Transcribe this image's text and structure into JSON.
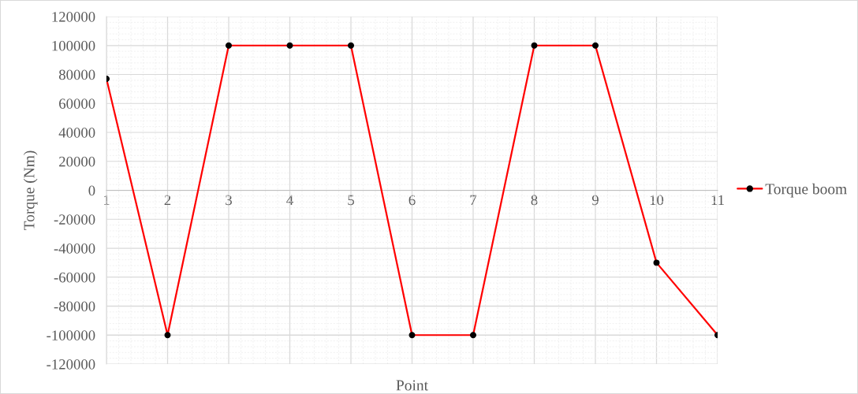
{
  "chart_data": {
    "type": "line",
    "xlabel": "Point",
    "ylabel": "Torque (Nm)",
    "x": [
      1,
      2,
      3,
      4,
      5,
      6,
      7,
      8,
      9,
      10,
      11
    ],
    "series": [
      {
        "name": "Torque boom",
        "color": "#ff0000",
        "values": [
          77000,
          -100000,
          100000,
          100000,
          100000,
          -100000,
          -100000,
          100000,
          100000,
          -50000,
          -100000
        ]
      }
    ],
    "xlim": [
      1,
      11
    ],
    "xticks": [
      1,
      2,
      3,
      4,
      5,
      6,
      7,
      8,
      9,
      10,
      11
    ],
    "ylim": [
      -120000,
      120000
    ],
    "yticks": [
      -120000,
      -100000,
      -80000,
      -60000,
      -40000,
      -20000,
      0,
      20000,
      40000,
      60000,
      80000,
      100000,
      120000
    ],
    "grid": true,
    "legend": "right",
    "marker": "circle",
    "line_style": "solid"
  }
}
